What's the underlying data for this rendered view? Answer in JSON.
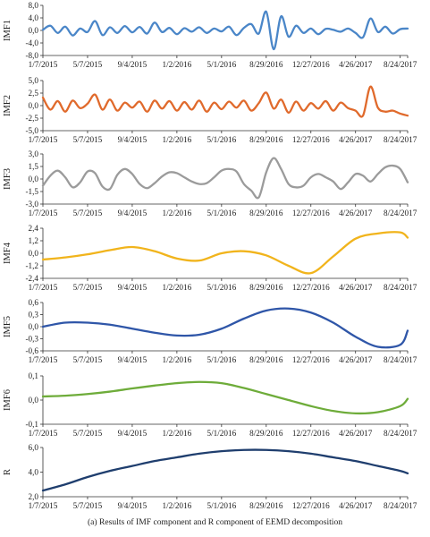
{
  "caption": "(a)   Results of IMF component and R component of EEMD decomposition",
  "x_tick_labels": [
    "1/7/2015",
    "5/7/2015",
    "9/4/2015",
    "1/2/2016",
    "5/1/2016",
    "8/29/2016",
    "12/27/2016",
    "4/26/2017",
    "8/24/2017"
  ],
  "chart_data": [
    {
      "type": "line",
      "ylabel": "IMF1",
      "color": "#4a86c8",
      "ylim": [
        -8.0,
        8.0
      ],
      "yticks": [
        "8,0",
        "4,0",
        "0,0",
        "-4,0",
        "-8,0"
      ],
      "x": [
        "2015-01-07",
        "2015-01-27",
        "2015-02-16",
        "2015-03-08",
        "2015-03-28",
        "2015-04-17",
        "2015-05-07",
        "2015-05-27",
        "2015-06-16",
        "2015-07-06",
        "2015-07-26",
        "2015-08-15",
        "2015-09-04",
        "2015-09-24",
        "2015-10-14",
        "2015-11-03",
        "2015-11-23",
        "2015-12-13",
        "2016-01-02",
        "2016-01-22",
        "2016-02-11",
        "2016-03-02",
        "2016-03-22",
        "2016-04-11",
        "2016-05-01",
        "2016-05-21",
        "2016-06-10",
        "2016-06-30",
        "2016-07-20",
        "2016-08-09",
        "2016-08-29",
        "2016-09-18",
        "2016-10-08",
        "2016-10-28",
        "2016-11-17",
        "2016-12-07",
        "2016-12-27",
        "2017-01-16",
        "2017-02-05",
        "2017-02-25",
        "2017-03-17",
        "2017-04-06",
        "2017-04-26",
        "2017-05-16",
        "2017-06-05",
        "2017-06-25",
        "2017-07-15",
        "2017-08-04",
        "2017-08-24",
        "2017-09-13"
      ],
      "values": [
        0.2,
        1.5,
        -0.8,
        1.2,
        -1.6,
        0.6,
        -0.5,
        3.0,
        -1.5,
        1.0,
        -0.8,
        1.4,
        -0.6,
        1.1,
        -1.0,
        2.5,
        -0.5,
        0.8,
        -1.2,
        0.7,
        -0.4,
        1.0,
        -0.8,
        0.6,
        -0.3,
        1.2,
        -1.5,
        0.8,
        2.0,
        -1.0,
        6.0,
        -6.0,
        4.5,
        -2.0,
        1.5,
        -0.8,
        0.6,
        -1.2,
        0.5,
        0.2,
        -0.4,
        0.6,
        -0.8,
        -2.2,
        3.8,
        -0.5,
        1.2,
        -1.0,
        0.4,
        0.6
      ]
    },
    {
      "type": "line",
      "ylabel": "IMF2",
      "color": "#e06a2c",
      "ylim": [
        -5.0,
        5.0
      ],
      "yticks": [
        "5,0",
        "2,5",
        "0,0",
        "-2,5",
        "-5,0"
      ],
      "x": [
        "2015-01-07",
        "2015-01-27",
        "2015-02-16",
        "2015-03-08",
        "2015-03-28",
        "2015-04-17",
        "2015-05-07",
        "2015-05-27",
        "2015-06-16",
        "2015-07-06",
        "2015-07-26",
        "2015-08-15",
        "2015-09-04",
        "2015-09-24",
        "2015-10-14",
        "2015-11-03",
        "2015-11-23",
        "2015-12-13",
        "2016-01-02",
        "2016-01-22",
        "2016-02-11",
        "2016-03-02",
        "2016-03-22",
        "2016-04-11",
        "2016-05-01",
        "2016-05-21",
        "2016-06-10",
        "2016-06-30",
        "2016-07-20",
        "2016-08-09",
        "2016-08-29",
        "2016-09-18",
        "2016-10-08",
        "2016-10-28",
        "2016-11-17",
        "2016-12-07",
        "2016-12-27",
        "2017-01-16",
        "2017-02-05",
        "2017-02-25",
        "2017-03-17",
        "2017-04-06",
        "2017-04-26",
        "2017-05-16",
        "2017-06-05",
        "2017-06-25",
        "2017-07-15",
        "2017-08-04",
        "2017-08-24",
        "2017-09-13"
      ],
      "values": [
        1.6,
        -0.8,
        0.9,
        -1.2,
        1.0,
        -0.5,
        0.4,
        2.2,
        -0.8,
        1.2,
        -1.0,
        0.6,
        -0.4,
        0.8,
        -1.2,
        1.0,
        -0.6,
        0.9,
        -1.0,
        0.7,
        -0.8,
        1.0,
        -1.2,
        0.6,
        -0.7,
        0.8,
        -0.4,
        1.0,
        -1.0,
        0.5,
        2.6,
        -0.6,
        1.2,
        -1.4,
        0.8,
        -1.0,
        0.5,
        -0.6,
        0.9,
        -1.0,
        0.6,
        -0.5,
        -1.0,
        -2.0,
        3.8,
        -0.4,
        -1.2,
        -1.0,
        -1.6,
        -2.0
      ]
    },
    {
      "type": "line",
      "ylabel": "IMF3",
      "color": "#9b9b9b",
      "ylim": [
        -3.0,
        3.0
      ],
      "yticks": [
        "3,0",
        "1,5",
        "0,0",
        "-1,5",
        "-3,0"
      ],
      "x": [
        "2015-01-07",
        "2015-01-27",
        "2015-02-16",
        "2015-03-08",
        "2015-03-28",
        "2015-04-17",
        "2015-05-07",
        "2015-05-27",
        "2015-06-16",
        "2015-07-06",
        "2015-07-26",
        "2015-08-15",
        "2015-09-04",
        "2015-09-24",
        "2015-10-14",
        "2015-11-03",
        "2015-11-23",
        "2015-12-13",
        "2016-01-02",
        "2016-01-22",
        "2016-02-11",
        "2016-03-02",
        "2016-03-22",
        "2016-04-11",
        "2016-05-01",
        "2016-05-21",
        "2016-06-10",
        "2016-06-30",
        "2016-07-20",
        "2016-08-09",
        "2016-08-29",
        "2016-09-18",
        "2016-10-08",
        "2016-10-28",
        "2016-11-17",
        "2016-12-07",
        "2016-12-27",
        "2017-01-16",
        "2017-02-05",
        "2017-02-25",
        "2017-03-17",
        "2017-04-06",
        "2017-04-26",
        "2017-05-16",
        "2017-06-05",
        "2017-06-25",
        "2017-07-15",
        "2017-08-04",
        "2017-08-24",
        "2017-09-13"
      ],
      "values": [
        -0.8,
        0.4,
        1.0,
        0.2,
        -1.0,
        -0.4,
        0.9,
        0.7,
        -0.9,
        -1.2,
        0.5,
        1.2,
        0.6,
        -0.6,
        -1.1,
        -0.5,
        0.3,
        0.8,
        0.7,
        0.2,
        -0.3,
        -0.6,
        -0.5,
        0.2,
        1.0,
        1.2,
        0.9,
        -0.6,
        -1.4,
        -2.2,
        0.8,
        2.5,
        1.2,
        -0.6,
        -1.0,
        -0.8,
        0.2,
        0.6,
        0.2,
        -0.3,
        -1.2,
        -0.4,
        0.6,
        0.4,
        -0.3,
        0.6,
        1.4,
        1.6,
        1.2,
        -0.4
      ]
    },
    {
      "type": "line",
      "ylabel": "IMF4",
      "color": "#f1b41c",
      "ylim": [
        -2.4,
        2.4
      ],
      "yticks": [
        "2,4",
        "1,2",
        "0,0",
        "-1,2",
        "-2,4"
      ],
      "x": [
        "2015-01-07",
        "2015-03-08",
        "2015-05-07",
        "2015-07-06",
        "2015-09-04",
        "2015-11-03",
        "2016-01-02",
        "2016-03-02",
        "2016-05-01",
        "2016-06-30",
        "2016-08-29",
        "2016-10-28",
        "2016-12-27",
        "2017-02-25",
        "2017-04-26",
        "2017-06-25",
        "2017-08-24",
        "2017-09-13"
      ],
      "values": [
        -0.6,
        -0.4,
        -0.1,
        0.3,
        0.6,
        0.2,
        -0.5,
        -0.7,
        0.0,
        0.2,
        -0.2,
        -1.2,
        -1.9,
        -0.3,
        1.4,
        1.9,
        2.0,
        1.5
      ]
    },
    {
      "type": "line",
      "ylabel": "IMF5",
      "color": "#2f56a8",
      "ylim": [
        -0.6,
        0.6
      ],
      "yticks": [
        "0,6",
        "0,3",
        "0,0",
        "-0,3",
        "-0,6"
      ],
      "x": [
        "2015-01-07",
        "2015-03-08",
        "2015-05-07",
        "2015-07-06",
        "2015-09-04",
        "2015-11-03",
        "2016-01-02",
        "2016-03-02",
        "2016-05-01",
        "2016-06-30",
        "2016-08-29",
        "2016-10-28",
        "2016-12-27",
        "2017-02-25",
        "2017-04-26",
        "2017-06-25",
        "2017-08-24",
        "2017-09-13"
      ],
      "values": [
        0.0,
        0.1,
        0.1,
        0.05,
        -0.05,
        -0.15,
        -0.22,
        -0.2,
        -0.05,
        0.2,
        0.4,
        0.45,
        0.35,
        0.1,
        -0.25,
        -0.5,
        -0.45,
        -0.1
      ]
    },
    {
      "type": "line",
      "ylabel": "IMF6",
      "color": "#6eac3a",
      "ylim": [
        -0.1,
        0.1
      ],
      "yticks": [
        "0,1",
        "0,0",
        "-0,1"
      ],
      "x": [
        "2015-01-07",
        "2015-03-08",
        "2015-05-07",
        "2015-07-06",
        "2015-09-04",
        "2015-11-03",
        "2016-01-02",
        "2016-03-02",
        "2016-05-01",
        "2016-06-30",
        "2016-08-29",
        "2016-10-28",
        "2016-12-27",
        "2017-02-25",
        "2017-04-26",
        "2017-06-25",
        "2017-08-24",
        "2017-09-13"
      ],
      "values": [
        0.015,
        0.018,
        0.025,
        0.035,
        0.048,
        0.06,
        0.07,
        0.075,
        0.07,
        0.05,
        0.025,
        0.0,
        -0.025,
        -0.045,
        -0.055,
        -0.05,
        -0.025,
        0.005
      ]
    },
    {
      "type": "line",
      "ylabel": "R",
      "color": "#1f3e6e",
      "ylim": [
        2.0,
        6.0
      ],
      "yticks": [
        "6,0",
        "4,0",
        "2,0"
      ],
      "x": [
        "2015-01-07",
        "2015-03-08",
        "2015-05-07",
        "2015-07-06",
        "2015-09-04",
        "2015-11-03",
        "2016-01-02",
        "2016-03-02",
        "2016-05-01",
        "2016-06-30",
        "2016-08-29",
        "2016-10-28",
        "2016-12-27",
        "2017-02-25",
        "2017-04-26",
        "2017-06-25",
        "2017-08-24",
        "2017-09-13"
      ],
      "values": [
        2.5,
        3.0,
        3.6,
        4.1,
        4.5,
        4.9,
        5.2,
        5.5,
        5.7,
        5.8,
        5.8,
        5.7,
        5.5,
        5.2,
        4.9,
        4.5,
        4.1,
        3.9
      ]
    }
  ]
}
